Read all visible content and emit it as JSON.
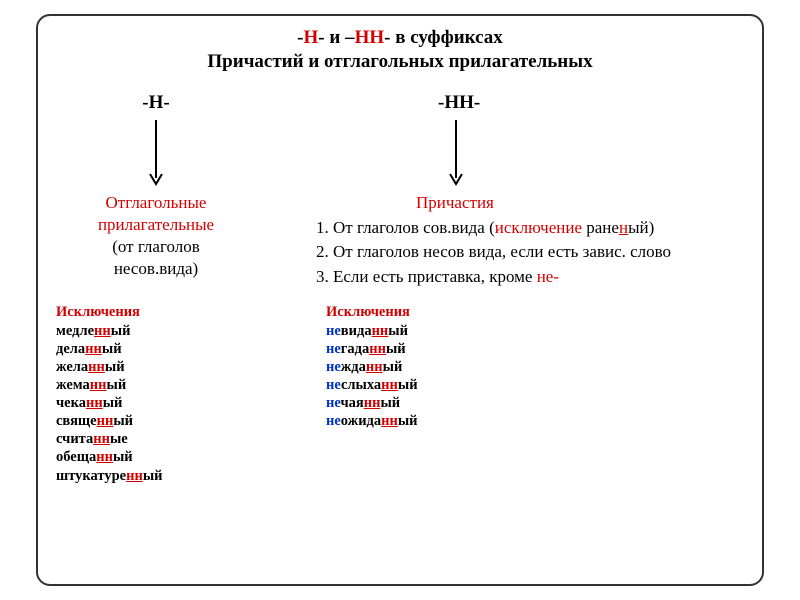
{
  "colors": {
    "red": "#d40000",
    "blue": "#0033cc",
    "black": "#000000",
    "border": "#333333",
    "background": "#ffffff"
  },
  "fonts": {
    "family": "Times New Roman",
    "titleSize": 19,
    "bodySize": 17,
    "excSize": 14.5
  },
  "title": {
    "part1": "-",
    "part2": "Н",
    "part3": "- и –",
    "part4": "НН",
    "part5": "- в суффиксах",
    "line2": "Причастий и отглагольных прилагательных"
  },
  "left": {
    "head": "-Н-",
    "label1": "Отглагольные",
    "label2": "прилагательные",
    "label3": "(от глаголов",
    "label4": "несов.вида)"
  },
  "right": {
    "head": "-НН-",
    "label": "Причастия",
    "rule1a": "1. От глаголов сов.вида (",
    "rule1b": "исключение",
    "rule1c": " ране",
    "rule1d": "н",
    "rule1e": "ый)",
    "rule2": "2. От глаголов несов вида, если есть завис. слово",
    "rule3a": "3. Если есть приставка, кроме ",
    "rule3b": "не-"
  },
  "excTitle": "Исключения",
  "leftExceptions": [
    {
      "pre": "медле",
      "hi": "нн",
      "post": "ый"
    },
    {
      "pre": "дела",
      "hi": "нн",
      "post": "ый"
    },
    {
      "pre": "жела",
      "hi": "нн",
      "post": "ый"
    },
    {
      "pre": "жема",
      "hi": "нн",
      "post": "ый"
    },
    {
      "pre": "чека",
      "hi": "нн",
      "post": "ый"
    },
    {
      "pre": "свяще",
      "hi": "нн",
      "post": "ый"
    },
    {
      "pre": "счита",
      "hi": "нн",
      "post": "ые"
    },
    {
      "pre": "обеща",
      "hi": "нн",
      "post": "ый"
    },
    {
      "pre": "штукатуре",
      "hi": "нн",
      "post": "ый"
    }
  ],
  "rightExceptions": [
    {
      "ne": "не",
      "mid": "вида",
      "hi": "нн",
      "post": "ый"
    },
    {
      "ne": "не",
      "mid": "гада",
      "hi": "нн",
      "post": "ый"
    },
    {
      "ne": "не",
      "mid": "жда",
      "hi": "нн",
      "post": "ый"
    },
    {
      "ne": "не",
      "mid": "слыха",
      "hi": "нн",
      "post": "ый"
    },
    {
      "ne": "не",
      "mid": "чая",
      "hi": "нн",
      "post": "ый"
    },
    {
      "ne": "не",
      "mid": "ожида",
      "hi": "нн",
      "post": "ый"
    }
  ],
  "arrow": {
    "width": 16,
    "height": 68,
    "stroke": "#000000",
    "strokeWidth": 2
  }
}
